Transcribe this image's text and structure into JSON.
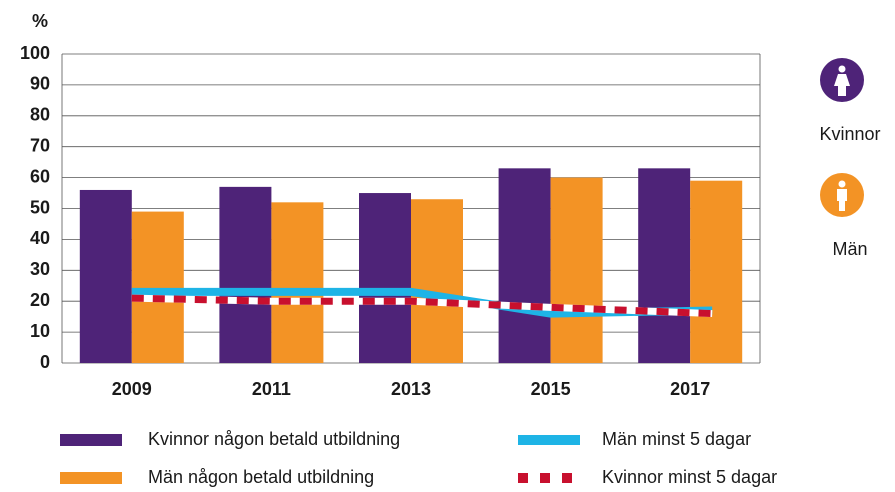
{
  "chart_data": {
    "type": "bar",
    "ylabel": "%",
    "categories": [
      "2009",
      "2011",
      "2013",
      "2015",
      "2017"
    ],
    "series": [
      {
        "name": "Kvinnor någon betald utbildning",
        "color": "#4e2378",
        "type": "bar",
        "values": [
          56,
          57,
          55,
          63,
          63
        ]
      },
      {
        "name": "Män någon betald utbildning",
        "color": "#f39325",
        "type": "bar",
        "values": [
          49,
          52,
          53,
          60,
          59
        ]
      },
      {
        "name": "Män minst 5 dagar",
        "color": "#1eb4e6",
        "type": "line",
        "values": [
          23,
          23,
          23,
          16,
          17
        ]
      },
      {
        "name": "Kvinnor minst 5 dagar",
        "color": "#c8102e",
        "type": "line",
        "dashed": true,
        "values": [
          21,
          20,
          20,
          18,
          16
        ]
      }
    ],
    "ylim": [
      0,
      100
    ],
    "yticks": [
      0,
      10,
      20,
      30,
      40,
      50,
      60,
      70,
      80,
      90,
      100
    ],
    "grid": true,
    "icon_labels": [
      {
        "label": "Kvinnor",
        "color": "#4e2378"
      },
      {
        "label": "Män",
        "color": "#f39325"
      }
    ]
  }
}
